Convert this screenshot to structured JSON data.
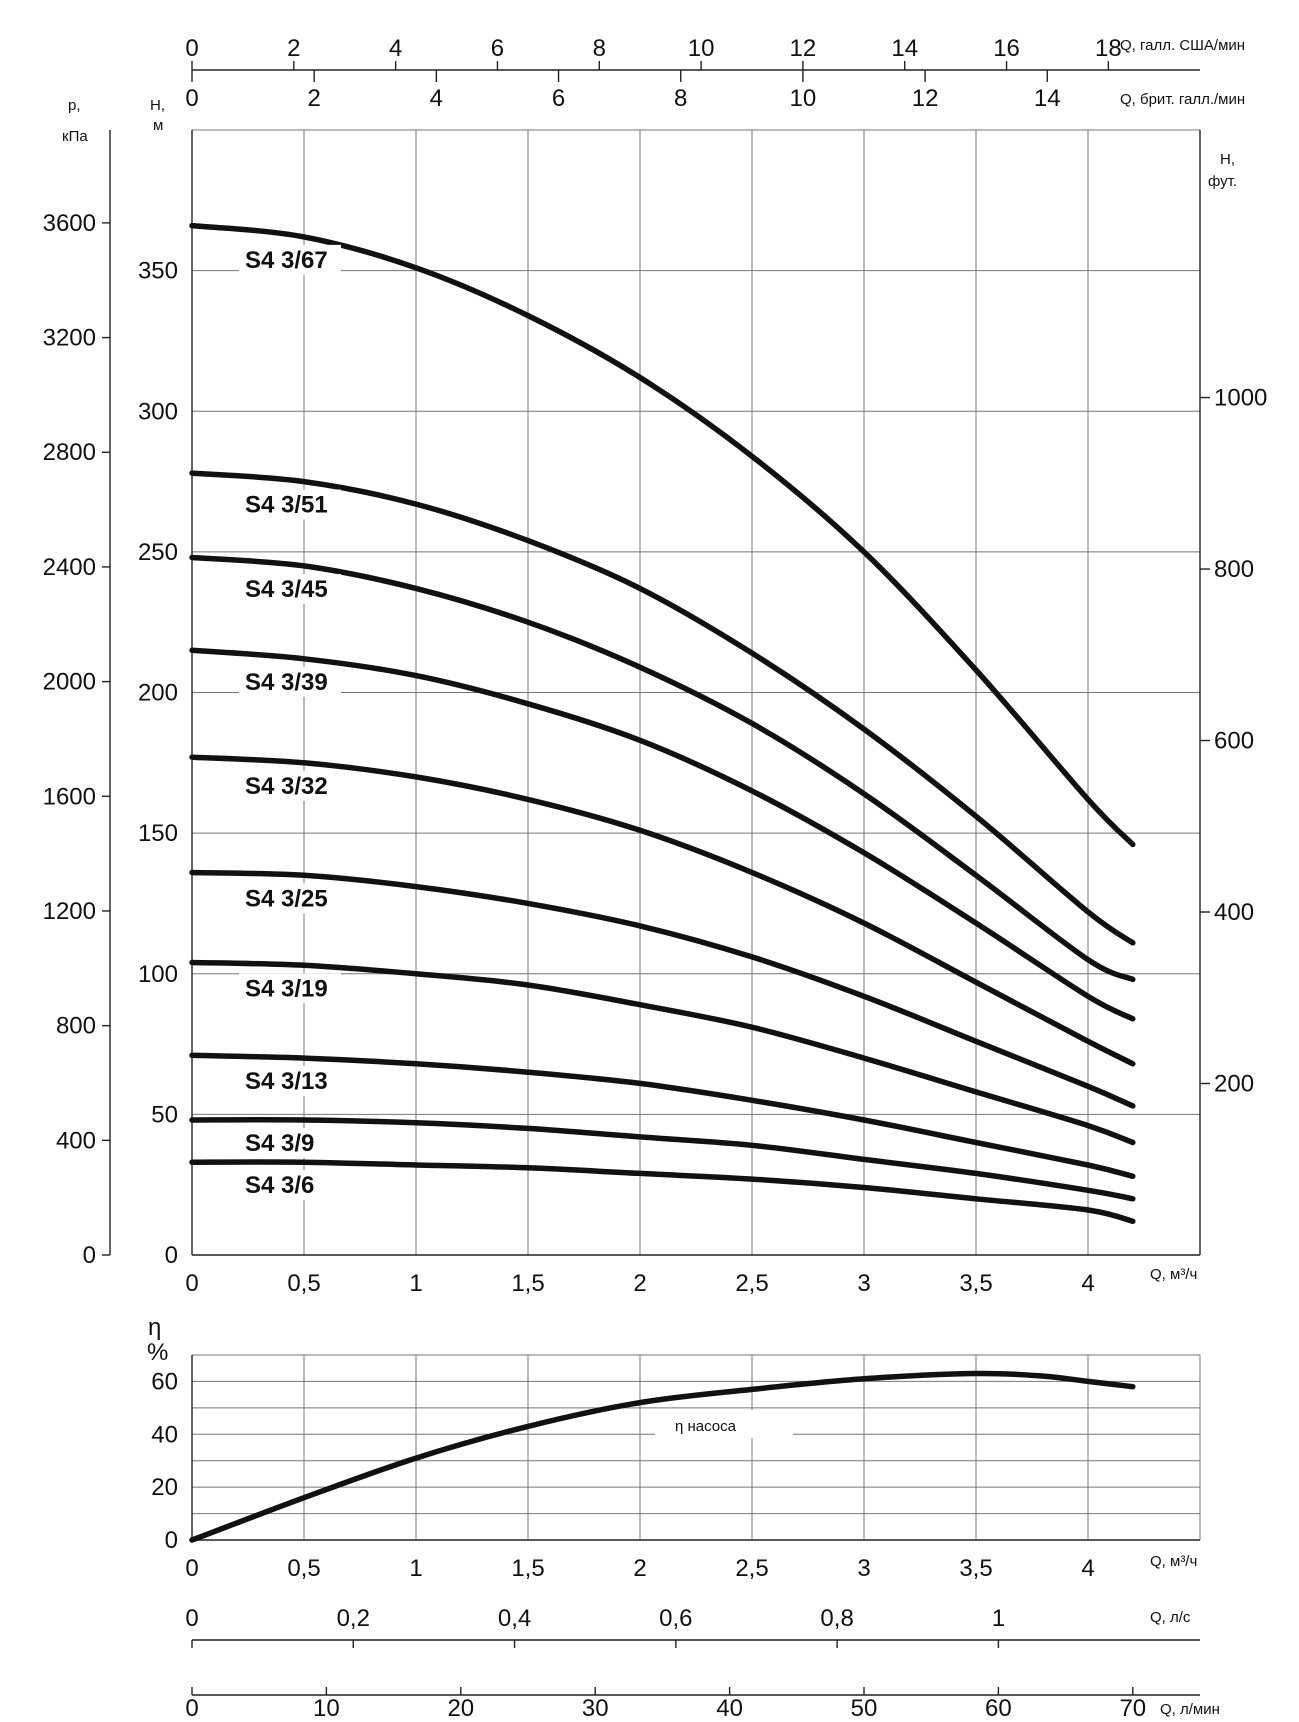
{
  "chart_data": [
    {
      "type": "line",
      "title": "",
      "x_axis": {
        "label": "Q, м³/ч",
        "range": [
          0,
          4.5
        ],
        "ticks": [
          "0",
          "0,5",
          "1",
          "1,5",
          "2",
          "2,5",
          "3",
          "3,5",
          "4"
        ]
      },
      "top_axis_us": {
        "label": "Q, галл. США/мин",
        "range": [
          0,
          19.8
        ],
        "ticks": [
          "0",
          "2",
          "4",
          "6",
          "8",
          "10",
          "12",
          "14",
          "16",
          "18"
        ]
      },
      "top_axis_uk": {
        "label": "Q, брит. галл./мин",
        "range": [
          0,
          16.5
        ],
        "ticks": [
          "0",
          "2",
          "4",
          "6",
          "8",
          "10",
          "12",
          "14"
        ]
      },
      "y_axis_head_m": {
        "label_line1": "H,",
        "label_line2": "м",
        "range": [
          0,
          400
        ],
        "ticks": [
          "0",
          "50",
          "100",
          "150",
          "200",
          "250",
          "300",
          "350"
        ]
      },
      "y_axis_pressure_kpa": {
        "label_line1": "p,",
        "label_line2": "кПа",
        "range": [
          0,
          3924
        ],
        "ticks": [
          "0",
          "400",
          "800",
          "1200",
          "1600",
          "2000",
          "2400",
          "2800",
          "3200",
          "3600"
        ]
      },
      "y_axis_head_ft": {
        "label_line1": "H,",
        "label_line2": "фут.",
        "range": [
          0,
          1312
        ],
        "ticks": [
          "200",
          "400",
          "600",
          "800",
          "1000"
        ]
      },
      "grid": true,
      "series": [
        {
          "name": "S4 3/67",
          "x": [
            0,
            0.5,
            1,
            1.5,
            2,
            2.5,
            3,
            3.5,
            4,
            4.2
          ],
          "y": [
            366,
            362,
            351,
            334,
            312,
            284,
            250,
            208,
            162,
            146
          ]
        },
        {
          "name": "S4 3/51",
          "x": [
            0,
            0.5,
            1,
            1.5,
            2,
            2.5,
            3,
            3.5,
            4,
            4.2
          ],
          "y": [
            278,
            275,
            267,
            254,
            237,
            214,
            187,
            156,
            122,
            111
          ]
        },
        {
          "name": "S4 3/45",
          "x": [
            0,
            0.5,
            1,
            1.5,
            2,
            2.5,
            3,
            3.5,
            4,
            4.2
          ],
          "y": [
            248,
            245,
            237,
            225,
            209,
            189,
            164,
            135,
            105,
            98
          ]
        },
        {
          "name": "S4 3/39",
          "x": [
            0,
            0.5,
            1,
            1.5,
            2,
            2.5,
            3,
            3.5,
            4,
            4.2
          ],
          "y": [
            215,
            212,
            206,
            196,
            183,
            165,
            143,
            118,
            92,
            84
          ]
        },
        {
          "name": "S4 3/32",
          "x": [
            0,
            0.5,
            1,
            1.5,
            2,
            2.5,
            3,
            3.5,
            4,
            4.2
          ],
          "y": [
            177,
            175,
            170,
            162,
            151,
            136,
            118,
            97,
            76,
            68
          ]
        },
        {
          "name": "S4 3/25",
          "x": [
            0,
            0.5,
            1,
            1.5,
            2,
            2.5,
            3,
            3.5,
            4,
            4.2
          ],
          "y": [
            136,
            135,
            131,
            125,
            117,
            106,
            92,
            76,
            60,
            53
          ]
        },
        {
          "name": "S4 3/19",
          "x": [
            0,
            0.5,
            1,
            1.5,
            2,
            2.5,
            3,
            3.5,
            4,
            4.2
          ],
          "y": [
            104,
            103,
            100,
            96,
            89,
            81,
            70,
            58,
            46,
            40
          ]
        },
        {
          "name": "S4 3/13",
          "x": [
            0,
            0.5,
            1,
            1.5,
            2,
            2.5,
            3,
            3.5,
            4,
            4.2
          ],
          "y": [
            71,
            70,
            68,
            65,
            61,
            55,
            48,
            40,
            32,
            28
          ]
        },
        {
          "name": "S4 3/9",
          "x": [
            0,
            0.5,
            1,
            1.5,
            2,
            2.5,
            3,
            3.5,
            4,
            4.2
          ],
          "y": [
            48,
            48,
            47,
            45,
            42,
            39,
            34,
            29,
            23,
            20
          ]
        },
        {
          "name": "S4 3/6",
          "x": [
            0,
            0.5,
            1,
            1.5,
            2,
            2.5,
            3,
            3.5,
            4,
            4.2
          ],
          "y": [
            33,
            33,
            32,
            31,
            29,
            27,
            24,
            20,
            16,
            12
          ]
        }
      ]
    },
    {
      "type": "line",
      "title": "",
      "x_axis": {
        "label": "Q, м³/ч",
        "range": [
          0,
          4.5
        ],
        "ticks": [
          "0",
          "0,5",
          "1",
          "1,5",
          "2",
          "2,5",
          "3",
          "3,5",
          "4"
        ]
      },
      "x_axis_ls": {
        "label": "Q, л/с",
        "range": [
          0,
          1.25
        ],
        "ticks": [
          "0",
          "0,2",
          "0,4",
          "0,6",
          "0,8",
          "1"
        ]
      },
      "x_axis_lmin": {
        "label": "Q, л/мин",
        "range": [
          0,
          75
        ],
        "ticks": [
          "0",
          "10",
          "20",
          "30",
          "40",
          "50",
          "60",
          "70"
        ]
      },
      "y_axis": {
        "label_line1": "η",
        "label_line2": "%",
        "range": [
          0,
          70
        ],
        "ticks": [
          "0",
          "20",
          "40",
          "60"
        ]
      },
      "grid": true,
      "series": [
        {
          "name": "η насоса",
          "x": [
            0,
            0.5,
            1,
            1.5,
            2,
            2.5,
            3,
            3.5,
            3.8,
            4,
            4.2
          ],
          "y": [
            0,
            16,
            31,
            43,
            52,
            57,
            61,
            63,
            62,
            60,
            58
          ]
        }
      ]
    }
  ]
}
